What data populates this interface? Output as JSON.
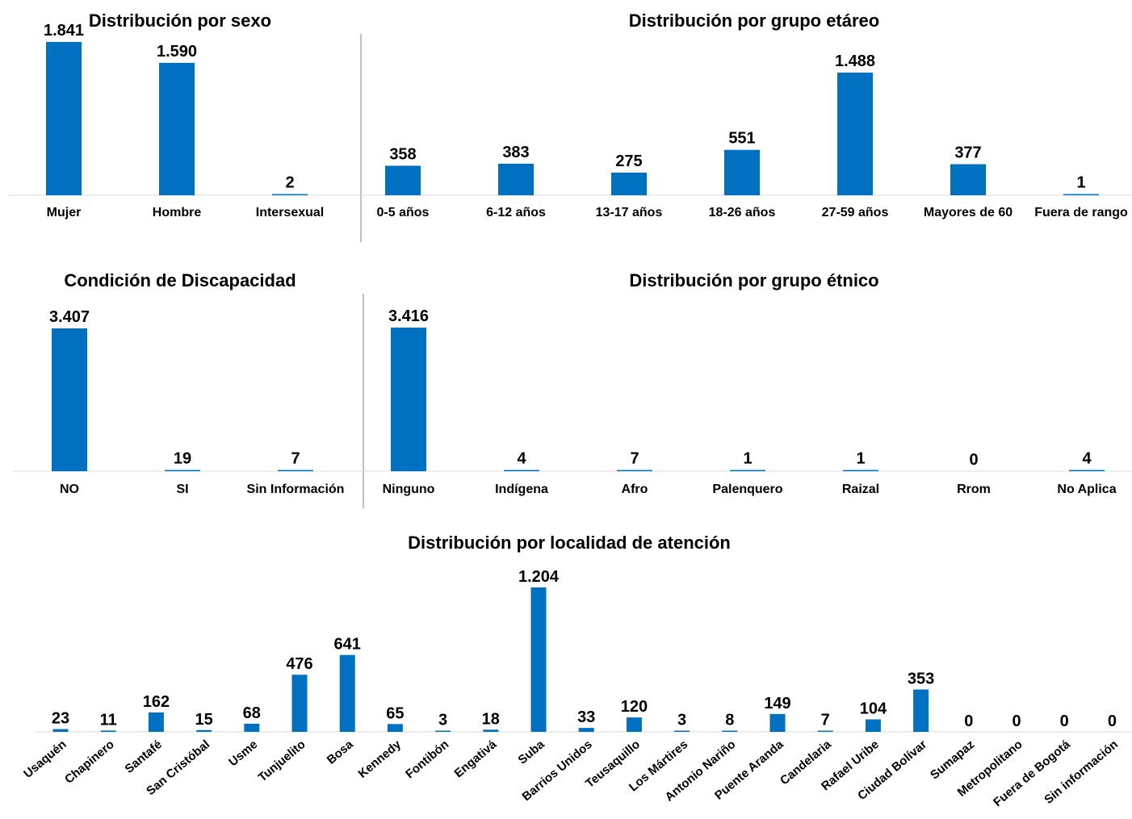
{
  "chart_data": [
    {
      "type": "bar",
      "title": "Distribución por sexo",
      "categories": [
        "Mujer",
        "Hombre",
        "Intersexual"
      ],
      "values": [
        1841,
        1590,
        2
      ],
      "labels": [
        "1.841",
        "1.590",
        "2"
      ],
      "color": "#0070C0"
    },
    {
      "type": "bar",
      "title": "Distribución por grupo etáreo",
      "categories": [
        "0-5 años",
        "6-12 años",
        "13-17 años",
        "18-26 años",
        "27-59 años",
        "Mayores de 60",
        "Fuera de rango"
      ],
      "values": [
        358,
        383,
        275,
        551,
        1488,
        377,
        1
      ],
      "labels": [
        "358",
        "383",
        "275",
        "551",
        "1.488",
        "377",
        "1"
      ],
      "color": "#0070C0"
    },
    {
      "type": "bar",
      "title": "Condición de Discapacidad",
      "categories": [
        "NO",
        "SI",
        "Sin Información"
      ],
      "values": [
        3407,
        19,
        7
      ],
      "labels": [
        "3.407",
        "19",
        "7"
      ],
      "color": "#0070C0"
    },
    {
      "type": "bar",
      "title": "Distribución por grupo étnico",
      "categories": [
        "Ninguno",
        "Indígena",
        "Afro",
        "Palenquero",
        "Raizal",
        "Rrom",
        "No Aplica"
      ],
      "values": [
        3416,
        4,
        7,
        1,
        1,
        0,
        4
      ],
      "labels": [
        "3.416",
        "4",
        "7",
        "1",
        "1",
        "0",
        "4"
      ],
      "color": "#0070C0"
    },
    {
      "type": "bar",
      "title": "Distribución por localidad de atención",
      "categories": [
        "Usaquén",
        "Chapinero",
        "Santafé",
        "San Cristóbal",
        "Usme",
        "Tunjuelito",
        "Bosa",
        "Kennedy",
        "Fontibón",
        "Engativá",
        "Suba",
        "Barrios Unidos",
        "Teusaquillo",
        "Los Mártires",
        "Antonio Nariño",
        "Puente Aranda",
        "Candelaria",
        "Rafael Uribe",
        "Ciudad Bolívar",
        "Sumapaz",
        "Metropolitano",
        "Fuera de Bogotá",
        "Sin información"
      ],
      "values": [
        23,
        11,
        162,
        15,
        68,
        476,
        641,
        65,
        3,
        18,
        1204,
        33,
        120,
        3,
        8,
        149,
        7,
        104,
        353,
        0,
        0,
        0,
        0
      ],
      "labels": [
        "23",
        "11",
        "162",
        "15",
        "68",
        "476",
        "641",
        "65",
        "3",
        "18",
        "1.204",
        "33",
        "120",
        "3",
        "8",
        "149",
        "7",
        "104",
        "353",
        "0",
        "0",
        "0",
        "0"
      ],
      "color": "#0070C0"
    }
  ]
}
